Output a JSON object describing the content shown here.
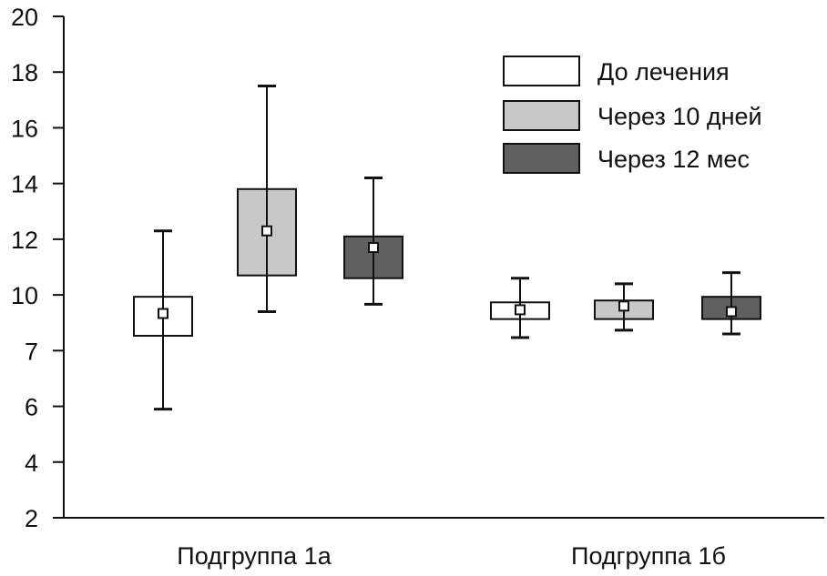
{
  "chart_data": {
    "type": "box",
    "y_ticks": [
      "2",
      "4",
      "6",
      "7",
      "10",
      "12",
      "14",
      "16",
      "18",
      "20"
    ],
    "ylim": [
      2,
      20
    ],
    "grid": false,
    "legend_position": "top-right",
    "categories": [
      "Подгруппа 1а",
      "Подгруппа 1б"
    ],
    "series": [
      {
        "name": "До лечения",
        "color": "#ffffff",
        "boxes": [
          {
            "whisker_low": 5.9,
            "q1": 7.8,
            "mean": 9.0,
            "q3": 9.9,
            "whisker_high": 12.3
          },
          {
            "whisker_low": 7.7,
            "q1": 8.7,
            "mean": 9.2,
            "q3": 9.6,
            "whisker_high": 10.6
          }
        ]
      },
      {
        "name": "Через 10 дней",
        "color": "#c8c8c8",
        "boxes": [
          {
            "whisker_low": 9.1,
            "q1": 10.7,
            "mean": 12.3,
            "q3": 13.8,
            "whisker_high": 17.5
          },
          {
            "whisker_low": 8.1,
            "q1": 8.7,
            "mean": 9.4,
            "q3": 9.7,
            "whisker_high": 10.4
          }
        ]
      },
      {
        "name": "Через 12 мес",
        "color": "#606060",
        "boxes": [
          {
            "whisker_low": 9.5,
            "q1": 10.6,
            "mean": 11.7,
            "q3": 12.1,
            "whisker_high": 14.2
          },
          {
            "whisker_low": 7.9,
            "q1": 8.7,
            "mean": 9.1,
            "q3": 9.9,
            "whisker_high": 10.8
          }
        ]
      }
    ]
  }
}
